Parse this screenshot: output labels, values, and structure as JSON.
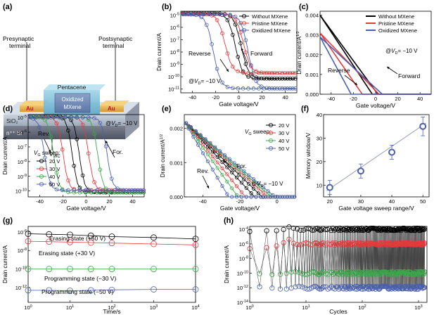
{
  "colors": {
    "black": "#000000",
    "red": "#e8393a",
    "blue": "#4a5fb0",
    "green": "#3aa84a",
    "gray": "#8a8a8a",
    "fit": "#9aa0b8"
  },
  "panels": {
    "a": {
      "label": "(a)",
      "presynaptic": [
        "Presynaptic",
        "terminal"
      ],
      "postsynaptic": [
        "Postsynaptic",
        "terminal"
      ],
      "pentacene": "Pentacene",
      "oxidized": [
        "Oxidized",
        "MXene"
      ],
      "au_left": "Au",
      "au_right": "Au",
      "sio2": "SiO₂",
      "si": "n⁺⁺ Si",
      "vwc": "V",
      "vwc_sub": "WC"
    },
    "b": {
      "label": "(b)",
      "ylabel": "Drain current/A",
      "xlabel": "Gate voltage/V",
      "reverse": "Reverse",
      "forward": "Forward",
      "cond": "@V",
      "cond_sub": "D",
      "cond_tail": "= −10 V"
    },
    "c": {
      "label": "(c)",
      "ylabel": "Drain current/A",
      "ylabel_sup": "1/2",
      "xlabel": "Gate voltage/V",
      "reverse": "Reverse",
      "forward": "Forward",
      "cond": "@V",
      "cond_sub": "D",
      "cond_tail": "= −10 V"
    },
    "d": {
      "label": "(d)",
      "ylabel": "Drain current/A",
      "xlabel": "Gate voltage/V",
      "rev": "Rev.",
      "for": "For.",
      "sweep": "V",
      "sweep_sub": "G",
      "sweep_tail": " sweep:",
      "cond": "@V",
      "cond_sub": "D",
      "cond_tail": "= −10 V"
    },
    "e": {
      "label": "(e)",
      "ylabel": "Drain current/A",
      "ylabel_sup": "1/2",
      "xlabel": "Gate voltage/V",
      "rev": "Rev.",
      "for": "For.",
      "sweep": "V",
      "sweep_sub": "G",
      "sweep_tail": " sweep:",
      "cond": "@V",
      "cond_sub": "D",
      "cond_tail": "= −10 V"
    },
    "f": {
      "label": "(f)"
    },
    "g": {
      "label": "(g)",
      "erasing50": "Erasing state (+50 V)",
      "erasing30": "Erasing state (+30 V)",
      "prog30": "Programming state (−30 V)",
      "prog50": "Programming state (−50 V)"
    },
    "h": {
      "label": "(h)"
    }
  },
  "chart_data": [
    {
      "id": "b",
      "type": "line",
      "xlabel": "Gate voltage/V",
      "ylabel": "Drain current/A",
      "xlim": [
        -50,
        50
      ],
      "ylim_log": [
        -11.3,
        -4.7
      ],
      "yscale": "log",
      "xticks": [
        -40,
        -20,
        0,
        20,
        40
      ],
      "yticks_exp": [
        -5,
        -6,
        -7,
        -8,
        -9,
        -10,
        -11
      ],
      "legend": "top-right",
      "series": [
        {
          "name": "Without MXene",
          "color": "black",
          "forward_thr": 2,
          "reverse_thr": -3,
          "floor": -10.15,
          "top": -4.85
        },
        {
          "name": "Pristine MXene",
          "color": "red",
          "forward_thr": 4,
          "reverse_thr": -12,
          "floor": -9.7,
          "top": -4.9
        },
        {
          "name": "Oxidized MXene",
          "color": "blue",
          "forward_thr": 8,
          "reverse_thr": -22,
          "floor": -10.95,
          "top": -4.95
        }
      ]
    },
    {
      "id": "c",
      "type": "line",
      "xlabel": "Gate voltage/V",
      "ylabel": "Drain current/A1/2",
      "xlim": [
        -50,
        50
      ],
      "ylim": [
        0,
        0.0042
      ],
      "xticks": [
        -40,
        -20,
        0,
        20,
        40
      ],
      "yticks": [
        0,
        0.001,
        0.002,
        0.003,
        0.004
      ],
      "ytick_labels": [
        "0.000",
        "0.001",
        "0.002",
        "0.003",
        "0.004"
      ],
      "legend": "top-right",
      "series": [
        {
          "name": "Without MXene",
          "color": "black",
          "forward_vth": 2,
          "reverse_vth": -3,
          "max": 0.004
        },
        {
          "name": "Pristine MXene",
          "color": "red",
          "forward_vth": 3,
          "reverse_vth": -12,
          "max": 0.0031
        },
        {
          "name": "Oxidized MXene",
          "color": "blue",
          "forward_vth": 6,
          "reverse_vth": -22,
          "max": 0.0029
        }
      ]
    },
    {
      "id": "d",
      "type": "line",
      "xlabel": "Gate voltage/V",
      "ylabel": "Drain current/A",
      "xlim": [
        -50,
        50
      ],
      "ylim_log": [
        -10.4,
        -4.8
      ],
      "yscale": "log",
      "xticks": [
        -40,
        -20,
        0,
        20,
        40
      ],
      "yticks_exp": [
        -5,
        -6,
        -7,
        -8,
        -9,
        -10
      ],
      "legend": "left",
      "series": [
        {
          "name": "20 V",
          "color": "black",
          "forward_thr": -6,
          "reverse_thr": -12
        },
        {
          "name": "30 V",
          "color": "red",
          "forward_thr": 2,
          "reverse_thr": -20
        },
        {
          "name": "40 V",
          "color": "green",
          "forward_thr": 10,
          "reverse_thr": -28
        },
        {
          "name": "50 V",
          "color": "blue",
          "forward_thr": 18,
          "reverse_thr": -36
        }
      ]
    },
    {
      "id": "e",
      "type": "line",
      "xlabel": "Gate voltage/V",
      "ylabel": "Drain current/A1/2",
      "xlim": [
        -50,
        10
      ],
      "ylim": [
        0,
        0.0024
      ],
      "xticks": [
        -40,
        -20,
        0
      ],
      "yticks": [
        0,
        0.001,
        0.002
      ],
      "ytick_labels": [
        "0.000",
        "0.001",
        "0.002"
      ],
      "legend": "top-right",
      "series": [
        {
          "name": "20 V",
          "color": "black",
          "forward_vth": -8,
          "reverse_vth": -12
        },
        {
          "name": "30 V",
          "color": "red",
          "forward_vth": -5,
          "reverse_vth": -17
        },
        {
          "name": "40 V",
          "color": "green",
          "forward_vth": -3,
          "reverse_vth": -21
        },
        {
          "name": "50 V",
          "color": "blue",
          "forward_vth": -1,
          "reverse_vth": -26
        }
      ]
    },
    {
      "id": "f",
      "type": "scatter",
      "xlabel": "Gate voltage sweep range/V",
      "ylabel": "Memory window/V",
      "xlim": [
        18,
        52
      ],
      "ylim": [
        5,
        40
      ],
      "xticks": [
        20,
        30,
        40,
        50
      ],
      "yticks": [
        10,
        20,
        30,
        40
      ],
      "x": [
        20,
        30,
        40,
        50
      ],
      "y": [
        9,
        16,
        24,
        35
      ],
      "err": [
        3,
        3,
        3,
        4
      ],
      "fit": {
        "x": [
          19,
          51
        ],
        "y": [
          7.6,
          36.4
        ]
      }
    },
    {
      "id": "g",
      "type": "scatter",
      "xlabel": "Time/s",
      "ylabel": "Drain current/A",
      "yscale": "log",
      "xscale": "log",
      "xlim_log": [
        0,
        4
      ],
      "ylim_log": [
        -13.6,
        -5.4
      ],
      "xtick_exp": [
        0,
        1,
        2,
        3,
        4
      ],
      "yticks_exp": [
        -6,
        -8,
        -10,
        -12
      ],
      "series": [
        {
          "name": "Erasing state (+50 V)",
          "color": "black",
          "y_exp": [
            -6.2,
            -6.25,
            -6.3,
            -6.4,
            -6.5,
            -6.6,
            -6.75
          ]
        },
        {
          "name": "Erasing state (+30 V)",
          "color": "red",
          "y_exp": [
            -7.0,
            -7.05,
            -7.1,
            -7.15,
            -7.2,
            -7.3,
            -7.4
          ]
        },
        {
          "name": "Programming state (−30 V)",
          "color": "green",
          "y_exp": [
            -10.0,
            -10.0,
            -10.0,
            -10.0,
            -10.0,
            -10.0,
            -10.0
          ]
        },
        {
          "name": "Programming state (−50 V)",
          "color": "blue",
          "y_exp": [
            -12.3,
            -12.3,
            -12.35,
            -12.3,
            -12.25,
            -12.2,
            -12.2
          ]
        }
      ],
      "x_exp": [
        0,
        0.5,
        1,
        1.5,
        2,
        3,
        4
      ]
    },
    {
      "id": "h",
      "type": "line",
      "xlabel": "Cycles",
      "ylabel": "Drain current/A",
      "yscale": "log",
      "xscale": "log",
      "xlim_log": [
        0,
        3.15
      ],
      "ylim_log": [
        -14,
        -3.6
      ],
      "xtick_exp": [
        0,
        1,
        2,
        3
      ],
      "yticks_exp": [
        -4,
        -6,
        -8,
        -10,
        -12,
        -14
      ],
      "levels": {
        "black": -4,
        "red": -6,
        "green": -10,
        "blue": -12
      }
    }
  ]
}
